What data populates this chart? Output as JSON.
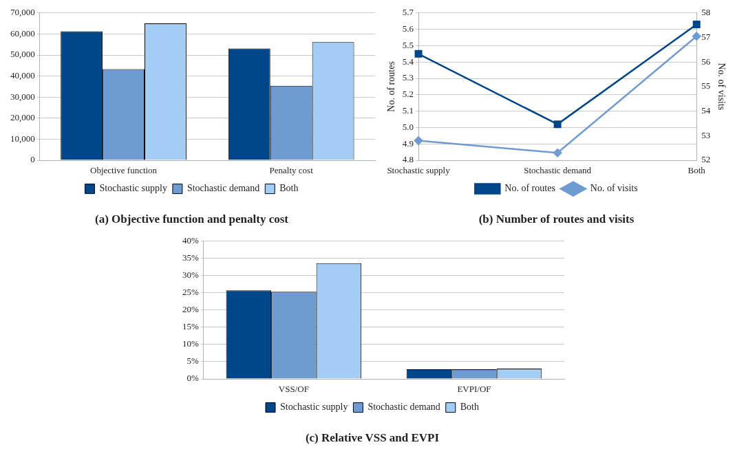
{
  "chart_data": [
    {
      "type": "bar",
      "title": "(a) Objective function and penalty cost",
      "categories": [
        "Objective function",
        "Penalty cost"
      ],
      "series": [
        {
          "name": "Stochastic supply",
          "color": "#00468b",
          "values": [
            61300,
            53100
          ]
        },
        {
          "name": "Stochastic demand",
          "color": "#6f9bd3",
          "values": [
            43300,
            35400
          ]
        },
        {
          "name": "Both",
          "color": "#a3cdf5",
          "values": [
            65000,
            56100
          ]
        }
      ],
      "ylim": [
        0,
        70000
      ],
      "yticks": [
        {
          "value": 0,
          "label": "0"
        },
        {
          "value": 10000,
          "label": "10,000"
        },
        {
          "value": 20000,
          "label": "20,000"
        },
        {
          "value": 30000,
          "label": "30,000"
        },
        {
          "value": 40000,
          "label": "40,000"
        },
        {
          "value": 50000,
          "label": "50,000"
        },
        {
          "value": 60000,
          "label": "60,000"
        },
        {
          "value": 70000,
          "label": "70,000"
        }
      ],
      "grid": "y",
      "legend": "bottom"
    },
    {
      "type": "line",
      "title": "(b) Number of routes and visits",
      "categories": [
        "Stochastic supply",
        "Stochastic demand",
        "Both"
      ],
      "ylabel": "No. of routes",
      "y2label": "No. of visits",
      "series": [
        {
          "name": "No. of routes",
          "color": "#00468b",
          "values": [
            5.45,
            5.02,
            5.63
          ],
          "marker": "square"
        },
        {
          "name": "No. of visits",
          "color": "#6f9bd3",
          "values": [
            52.8,
            52.3,
            57.05
          ],
          "marker": "diamond",
          "axis": "y2"
        }
      ],
      "ylim": [
        4.8,
        5.7
      ],
      "yticks": [
        4.8,
        4.9,
        {
          "value": 5,
          "label": "5.0"
        },
        5.1,
        5.2,
        5.3,
        5.4,
        5.5,
        5.6,
        5.7
      ],
      "y2lim": [
        52,
        58
      ],
      "y2ticks": [
        52,
        53,
        54,
        55,
        56,
        57,
        58
      ],
      "grid": "y",
      "legend": "bottom"
    },
    {
      "type": "bar",
      "title": "(c) Relative VSS and EVPI",
      "categories": [
        "VSS/OF",
        "EVPI/OF"
      ],
      "series": [
        {
          "name": "Stochastic supply",
          "color": "#00468b",
          "values": [
            25.7,
            2.8
          ]
        },
        {
          "name": "Stochastic demand",
          "color": "#6f9bd3",
          "values": [
            25.3,
            2.8
          ]
        },
        {
          "name": "Both",
          "color": "#a3cdf5",
          "values": [
            33.6,
            3.0
          ]
        }
      ],
      "ylim": [
        0,
        40
      ],
      "yticks": [
        {
          "value": 0,
          "label": "0%"
        },
        {
          "value": 5,
          "label": "5%"
        },
        {
          "value": 10,
          "label": "10%"
        },
        {
          "value": 15,
          "label": "15%"
        },
        {
          "value": 20,
          "label": "20%"
        },
        {
          "value": 25,
          "label": "25%"
        },
        {
          "value": 30,
          "label": "30%"
        },
        {
          "value": 35,
          "label": "35%"
        },
        {
          "value": 40,
          "label": "40%"
        }
      ],
      "grid": "y",
      "legend": "bottom"
    }
  ]
}
